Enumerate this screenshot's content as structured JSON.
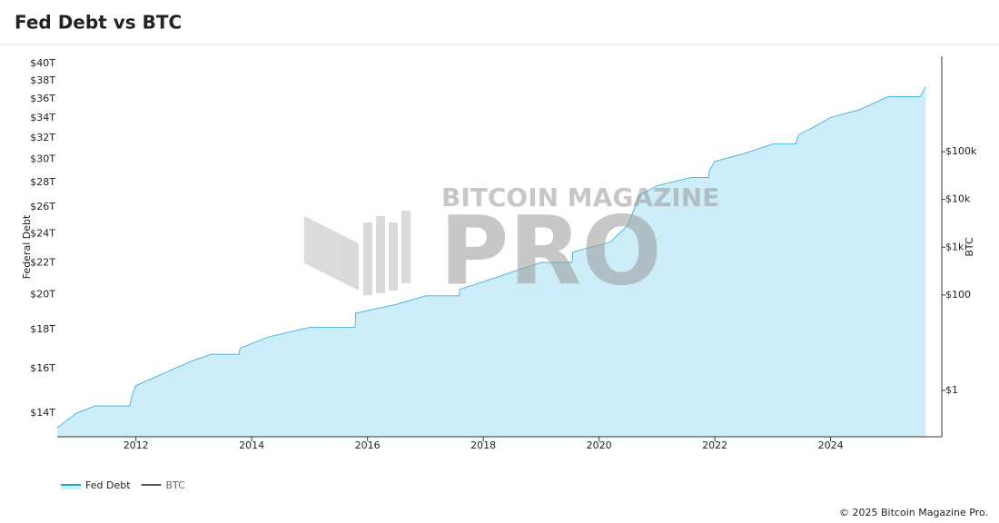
{
  "chart_data": {
    "type": "area",
    "title": "Fed Debt vs BTC",
    "ylabel": "Federal Debt",
    "y2label": "BTC",
    "watermark": [
      "BITCOIN MAGAZINE",
      "PRO"
    ],
    "copyright": "© 2025 Bitcoin Magazine Pro.",
    "x": [
      2010.64,
      2010.98,
      2011.3,
      2011.58,
      2011.9,
      2011.92,
      2012.0,
      2012.5,
      2013.0,
      2013.3,
      2013.79,
      2013.8,
      2014.3,
      2015.0,
      2015.79,
      2015.8,
      2016.5,
      2017.0,
      2017.59,
      2017.6,
      2018.2,
      2019.0,
      2019.54,
      2019.55,
      2020.2,
      2020.5,
      2020.7,
      2021.0,
      2021.6,
      2021.9,
      2021.91,
      2022.0,
      2022.5,
      2023.0,
      2023.4,
      2023.45,
      2023.7,
      2024.0,
      2024.5,
      2025.0,
      2025.55,
      2025.64
    ],
    "series": [
      {
        "name": "Fed Debt",
        "color": "#1ea3d8",
        "fill": "#cdeef9",
        "values": [
          13.4,
          14.0,
          14.3,
          14.3,
          14.3,
          14.6,
          15.2,
          15.8,
          16.4,
          16.7,
          16.7,
          17.0,
          17.6,
          18.1,
          18.1,
          18.9,
          19.4,
          19.9,
          19.9,
          20.3,
          21.0,
          22.0,
          22.0,
          22.7,
          23.4,
          24.6,
          26.9,
          27.7,
          28.4,
          28.4,
          29.0,
          29.8,
          30.5,
          31.4,
          31.4,
          32.3,
          33.0,
          34.0,
          34.8,
          36.2,
          36.2,
          37.3
        ]
      },
      {
        "name": "BTC",
        "color": "#555555",
        "axis": "y2"
      }
    ],
    "xlim": [
      2010.64,
      2025.92
    ],
    "xticks": [
      2012,
      2014,
      2016,
      2018,
      2020,
      2022,
      2024
    ],
    "ylog": true,
    "ylim": [
      13.05,
      40.9
    ],
    "yticks": [
      {
        "value": 14,
        "label": "$14T"
      },
      {
        "value": 16,
        "label": "$16T"
      },
      {
        "value": 18,
        "label": "$18T"
      },
      {
        "value": 20,
        "label": "$20T"
      },
      {
        "value": 22,
        "label": "$22T"
      },
      {
        "value": 24,
        "label": "$24T"
      },
      {
        "value": 26,
        "label": "$26T"
      },
      {
        "value": 28,
        "label": "$28T"
      },
      {
        "value": 30,
        "label": "$30T"
      },
      {
        "value": 32,
        "label": "$32T"
      },
      {
        "value": 34,
        "label": "$34T"
      },
      {
        "value": 36,
        "label": "$36T"
      },
      {
        "value": 38,
        "label": "$38T"
      },
      {
        "value": 40,
        "label": "$40T"
      }
    ],
    "y2log": true,
    "y2lim": [
      0.107,
      10000000
    ],
    "y2ticks": [
      {
        "value": 1,
        "label": "$1"
      },
      {
        "value": 100,
        "label": "$100"
      },
      {
        "value": 1000,
        "label": "$1k"
      },
      {
        "value": 10000,
        "label": "$10k"
      },
      {
        "value": 100000,
        "label": "$100k"
      }
    ],
    "legend": "bottom-left"
  }
}
